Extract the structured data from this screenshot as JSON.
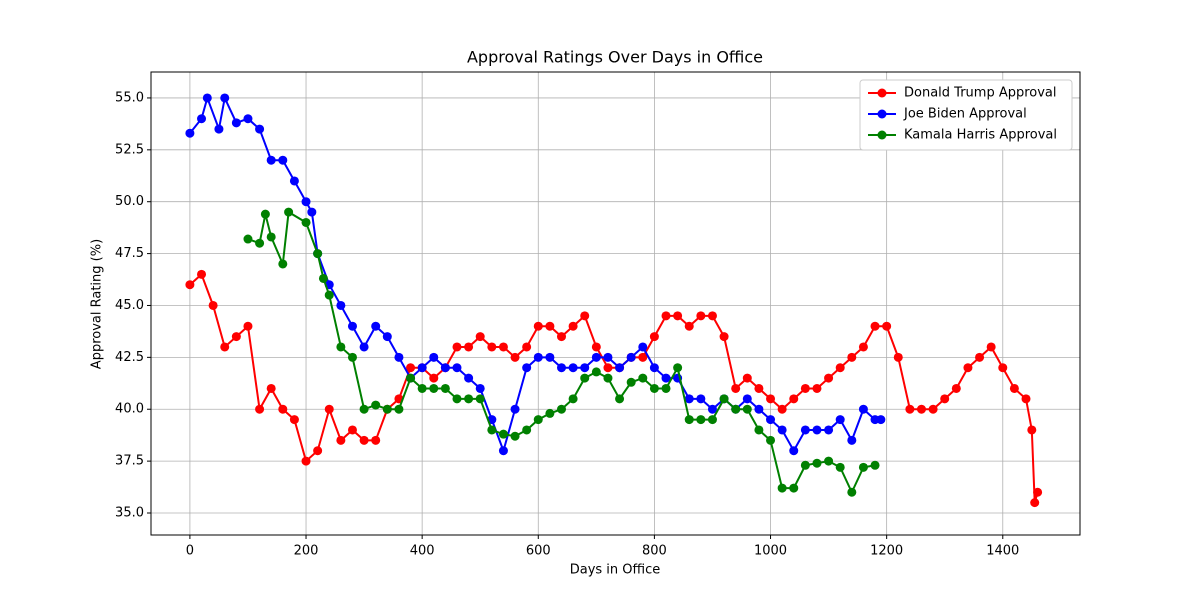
{
  "chart_data": {
    "type": "line",
    "title": "Approval Ratings Over Days in Office",
    "xlabel": "Days in Office",
    "ylabel": "Approval Rating (%)",
    "xlim": [
      -67,
      1533
    ],
    "ylim": [
      33.94,
      56.25
    ],
    "xticks": [
      0,
      200,
      400,
      600,
      800,
      1000,
      1200,
      1400
    ],
    "yticks": [
      {
        "value": 35,
        "label": "35.0"
      },
      37.5,
      {
        "value": 40,
        "label": "40.0"
      },
      42.5,
      {
        "value": 45,
        "label": "45.0"
      },
      47.5,
      {
        "value": 50,
        "label": "50.0"
      },
      52.5,
      {
        "value": 55,
        "label": "55.0"
      }
    ],
    "grid": true,
    "legend": "upper right",
    "series": [
      {
        "name": "Donald Trump Approval",
        "color": "#ff0000",
        "x": [
          0,
          20,
          40,
          60,
          80,
          100,
          120,
          140,
          160,
          180,
          200,
          220,
          240,
          260,
          280,
          300,
          320,
          340,
          360,
          380,
          400,
          420,
          440,
          460,
          480,
          500,
          520,
          540,
          560,
          580,
          600,
          620,
          640,
          660,
          680,
          700,
          720,
          740,
          760,
          780,
          800,
          820,
          840,
          860,
          880,
          900,
          920,
          940,
          960,
          980,
          1000,
          1020,
          1040,
          1060,
          1080,
          1100,
          1120,
          1140,
          1160,
          1180,
          1200,
          1220,
          1240,
          1260,
          1280,
          1300,
          1320,
          1340,
          1360,
          1380,
          1400,
          1420,
          1440,
          1450,
          1455,
          1460
        ],
        "values": [
          46,
          46.5,
          45,
          43,
          43.5,
          44,
          40,
          41,
          40,
          39.5,
          37.5,
          38,
          40,
          38.5,
          39,
          38.5,
          38.5,
          40,
          40.5,
          42,
          42,
          41.5,
          42,
          43,
          43,
          43.5,
          43,
          43,
          42.5,
          43,
          44,
          44,
          43.5,
          44,
          44.5,
          43,
          42,
          42,
          42.5,
          42.5,
          43.5,
          44.5,
          44.5,
          44,
          44.5,
          44.5,
          43.5,
          41,
          41.5,
          41,
          40.5,
          40,
          40.5,
          41,
          41,
          41.5,
          42,
          42.5,
          43,
          44,
          44,
          42.5,
          40,
          40,
          40,
          40.5,
          41,
          42,
          42.5,
          43,
          42,
          41,
          40.5,
          39,
          35.5,
          36
        ]
      },
      {
        "name": "Joe Biden Approval",
        "color": "#0000ff",
        "x": [
          0,
          20,
          30,
          50,
          60,
          80,
          100,
          120,
          140,
          160,
          180,
          200,
          210,
          220,
          240,
          260,
          280,
          300,
          320,
          340,
          360,
          380,
          400,
          420,
          440,
          460,
          480,
          500,
          520,
          540,
          560,
          580,
          600,
          620,
          640,
          660,
          680,
          700,
          720,
          740,
          760,
          780,
          800,
          820,
          840,
          860,
          880,
          900,
          920,
          940,
          960,
          980,
          1000,
          1020,
          1040,
          1060,
          1080,
          1100,
          1120,
          1140,
          1160,
          1180,
          1190
        ],
        "values": [
          53.3,
          54,
          55,
          53.5,
          55,
          53.8,
          54,
          53.5,
          52,
          52,
          51,
          50,
          49.5,
          47.5,
          46,
          45,
          44,
          43,
          44,
          43.5,
          42.5,
          41.5,
          42,
          42.5,
          42,
          42,
          41.5,
          41,
          39.5,
          38,
          40,
          42,
          42.5,
          42.5,
          42,
          42,
          42,
          42.5,
          42.5,
          42,
          42.5,
          43,
          42,
          41.5,
          41.5,
          40.5,
          40.5,
          40,
          40.5,
          40,
          40.5,
          40,
          39.5,
          39,
          38,
          39,
          39,
          39,
          39.5,
          38.5,
          40,
          39.5,
          39.5
        ]
      },
      {
        "name": "Kamala Harris Approval",
        "color": "#008000",
        "x": [
          100,
          120,
          130,
          140,
          160,
          170,
          200,
          220,
          230,
          240,
          260,
          280,
          300,
          320,
          340,
          360,
          380,
          400,
          420,
          440,
          460,
          480,
          500,
          520,
          540,
          560,
          580,
          600,
          620,
          640,
          660,
          680,
          700,
          720,
          740,
          760,
          780,
          800,
          820,
          840,
          860,
          880,
          900,
          920,
          940,
          960,
          980,
          1000,
          1020,
          1040,
          1060,
          1080,
          1100,
          1120,
          1140,
          1160,
          1180
        ],
        "values": [
          48.2,
          48,
          49.4,
          48.3,
          47,
          49.5,
          49,
          47.5,
          46.3,
          45.5,
          43,
          42.5,
          40,
          40.2,
          40,
          40,
          41.5,
          41,
          41,
          41,
          40.5,
          40.5,
          40.5,
          39,
          38.8,
          38.7,
          39,
          39.5,
          39.8,
          40,
          40.5,
          41.5,
          41.8,
          41.5,
          40.5,
          41.3,
          41.5,
          41,
          41,
          42,
          39.5,
          39.5,
          39.5,
          40.5,
          40,
          40,
          39,
          38.5,
          36.2,
          36.2,
          37.3,
          37.4,
          37.5,
          37.2,
          36,
          37.2,
          37.3
        ]
      }
    ]
  }
}
